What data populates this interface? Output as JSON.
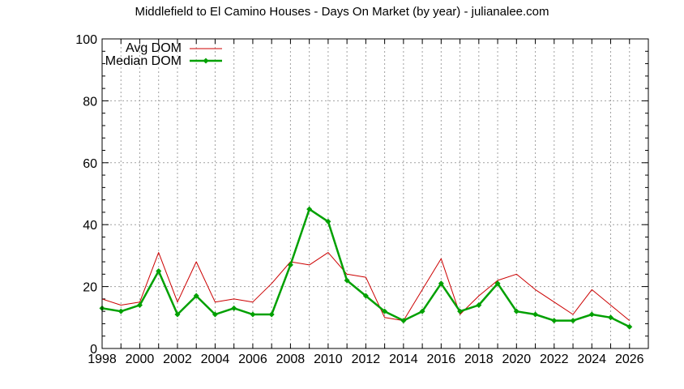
{
  "chart_data": {
    "type": "line",
    "title": "Middlefield to El Camino Houses - Days On Market (by year) - julianalee.com",
    "xlabel": "",
    "ylabel": "",
    "x": [
      1998,
      1999,
      2000,
      2001,
      2002,
      2003,
      2004,
      2005,
      2006,
      2007,
      2008,
      2009,
      2010,
      2011,
      2012,
      2013,
      2014,
      2015,
      2016,
      2017,
      2018,
      2019,
      2020,
      2021,
      2022,
      2023,
      2024,
      2025,
      2026
    ],
    "xlim": [
      1998,
      2027
    ],
    "ylim": [
      0,
      100
    ],
    "xticks": [
      "1998",
      "2000",
      "2002",
      "2004",
      "2006",
      "2008",
      "2010",
      "2012",
      "2014",
      "2016",
      "2018",
      "2020",
      "2022",
      "2024",
      "2026"
    ],
    "yticks": [
      "0",
      "20",
      "40",
      "60",
      "80",
      "100"
    ],
    "grid": true,
    "legend_position": "top-left",
    "series": [
      {
        "name": "Avg DOM",
        "color": "#cc0000",
        "marker": "none",
        "values": [
          16,
          14,
          15,
          31,
          15,
          28,
          15,
          16,
          15,
          21,
          28,
          27,
          31,
          24,
          23,
          10,
          9,
          19,
          29,
          11,
          17,
          22,
          24,
          19,
          15,
          11,
          19,
          14,
          9
        ]
      },
      {
        "name": "Median DOM",
        "color": "#00a000",
        "marker": "diamond",
        "values": [
          13,
          12,
          14,
          25,
          11,
          17,
          11,
          13,
          11,
          11,
          27,
          45,
          41,
          22,
          17,
          12,
          9,
          12,
          21,
          12,
          14,
          21,
          12,
          11,
          9,
          9,
          11,
          10,
          7
        ]
      }
    ]
  }
}
